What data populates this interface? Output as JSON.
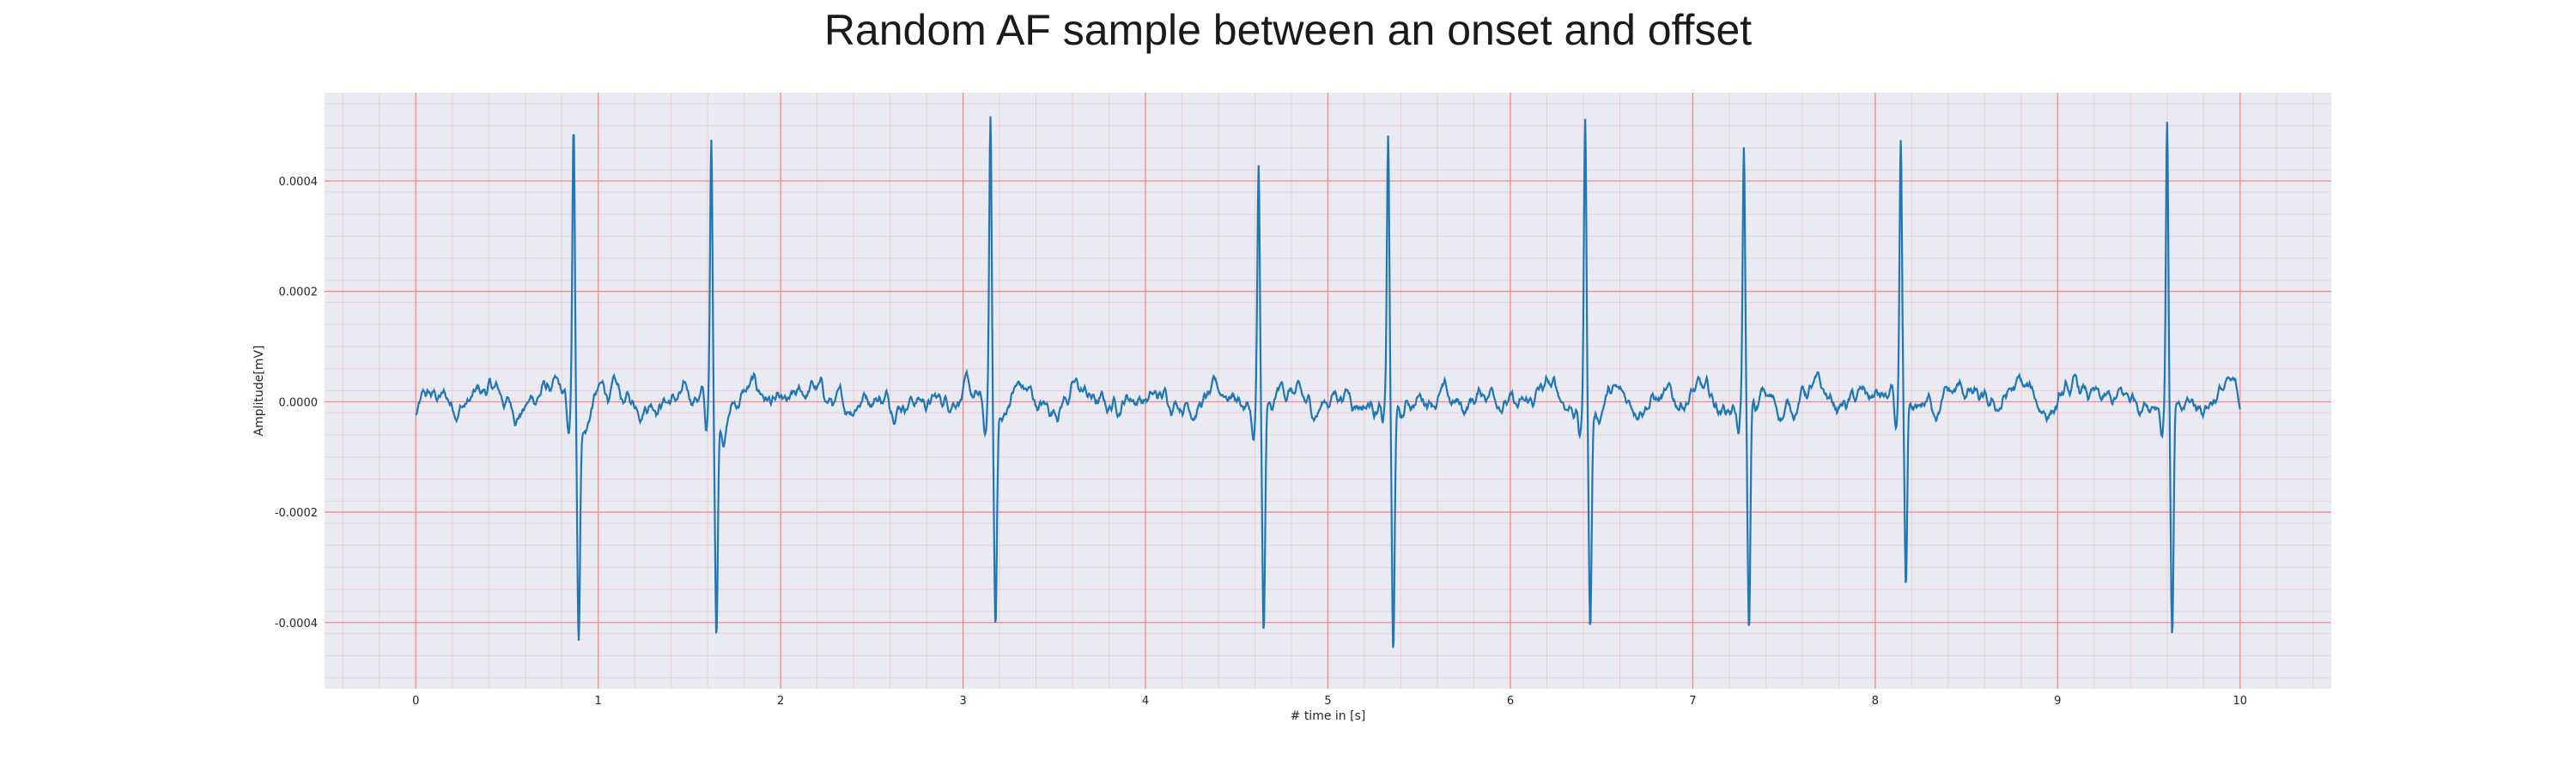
{
  "chart_data": {
    "type": "line",
    "title": "Random AF sample between an onset and offset",
    "xlabel": "# time in [s]",
    "ylabel": "Amplitude[mV]",
    "xlim": [
      -0.5,
      10.5
    ],
    "ylim": [
      -0.00052,
      0.00056
    ],
    "x_ticks": [
      "0",
      "1",
      "2",
      "3",
      "4",
      "5",
      "6",
      "7",
      "8",
      "9",
      "10"
    ],
    "y_ticks": [
      "-0.0004",
      "-0.0002",
      "0.0000",
      "0.0002",
      "0.0004"
    ],
    "grid": true,
    "grid_color": "#f28b8b",
    "background_color": "#eaeaf2",
    "line_color": "#1f77b4",
    "x_range": [
      0,
      10
    ],
    "sampling_rate_hz": 300,
    "baseline_offset": 5e-06,
    "noise_amplitude": 4.5e-05,
    "beats": [
      {
        "t": 0.865,
        "r_peak": 0.00049,
        "s_trough": -0.0004
      },
      {
        "t": 1.62,
        "r_peak": 0.00046,
        "s_trough": -0.0004
      },
      {
        "t": 3.15,
        "r_peak": 0.00052,
        "s_trough": -0.00038
      },
      {
        "t": 4.62,
        "r_peak": 0.00042,
        "s_trough": -0.00042
      },
      {
        "t": 5.33,
        "r_peak": 0.00047,
        "s_trough": -0.00047
      },
      {
        "t": 6.41,
        "r_peak": 0.00052,
        "s_trough": -0.0004
      },
      {
        "t": 7.28,
        "r_peak": 0.00043,
        "s_trough": -0.00045
      },
      {
        "t": 8.14,
        "r_peak": 0.00045,
        "s_trough": -0.00037
      },
      {
        "t": 9.6,
        "r_peak": 0.0005,
        "s_trough": -0.00043
      }
    ]
  }
}
